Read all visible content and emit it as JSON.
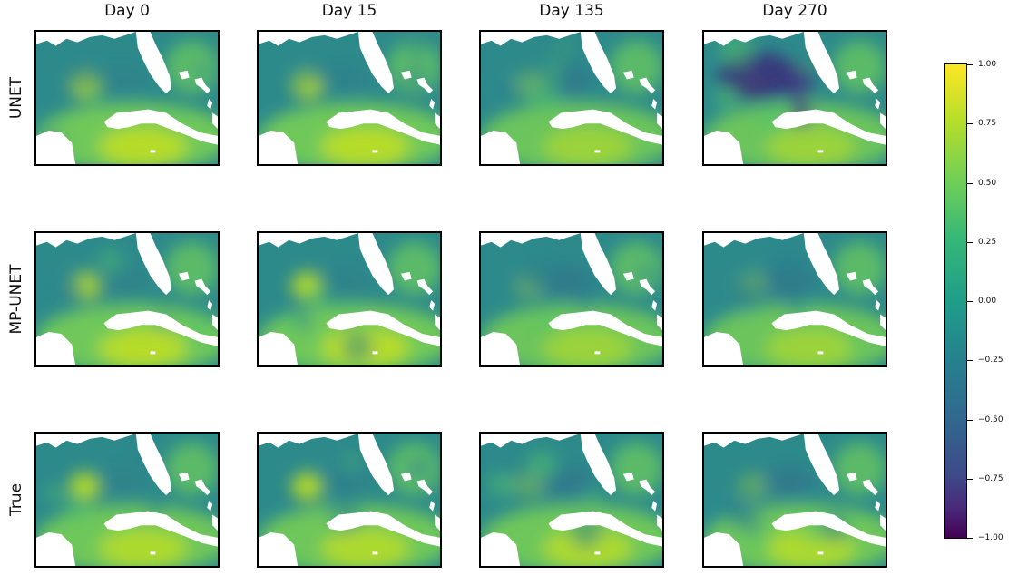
{
  "chart_data": {
    "type": "heatmap",
    "columns": [
      "Day 0",
      "Day 15",
      "Day 135",
      "Day 270"
    ],
    "rows": [
      "UNET",
      "MP-UNET",
      "True"
    ],
    "colorbar": {
      "min": -1.0,
      "max": 1.0,
      "ticks": [
        "1.00",
        "0.75",
        "0.50",
        "0.25",
        "0.00",
        "−0.25",
        "−0.50",
        "−0.75",
        "−1.00"
      ],
      "colormap": "viridis"
    }
  }
}
